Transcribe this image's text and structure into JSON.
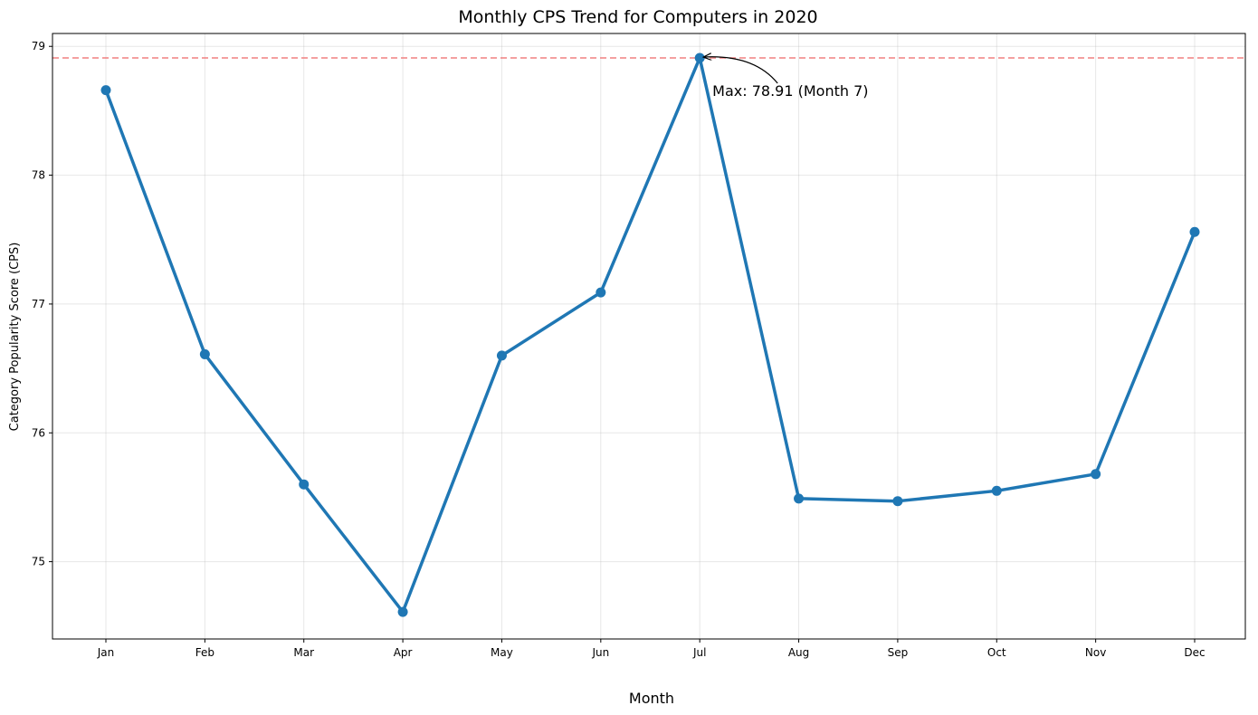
{
  "chart_data": {
    "type": "line",
    "title": "Monthly CPS Trend for Computers in 2020",
    "xlabel": "Month",
    "ylabel": "Category Popularity Score (CPS)",
    "categories": [
      "Jan",
      "Feb",
      "Mar",
      "Apr",
      "May",
      "Jun",
      "Jul",
      "Aug",
      "Sep",
      "Oct",
      "Nov",
      "Dec"
    ],
    "series": [
      {
        "values": [
          78.66,
          76.61,
          75.6,
          74.61,
          76.6,
          77.09,
          78.91,
          75.49,
          75.47,
          75.55,
          75.68,
          77.56
        ],
        "color": "#1f77b4"
      }
    ],
    "ylim": [
      74.4,
      79.1
    ],
    "yticks": [
      75,
      76,
      77,
      78,
      79
    ],
    "grid": true,
    "reference_line": {
      "value": 78.91,
      "color": "#f08080",
      "style": "dashed"
    },
    "annotation": {
      "text": "Max: 78.91 (Month 7)",
      "category": "Jul",
      "value": 78.91
    }
  }
}
